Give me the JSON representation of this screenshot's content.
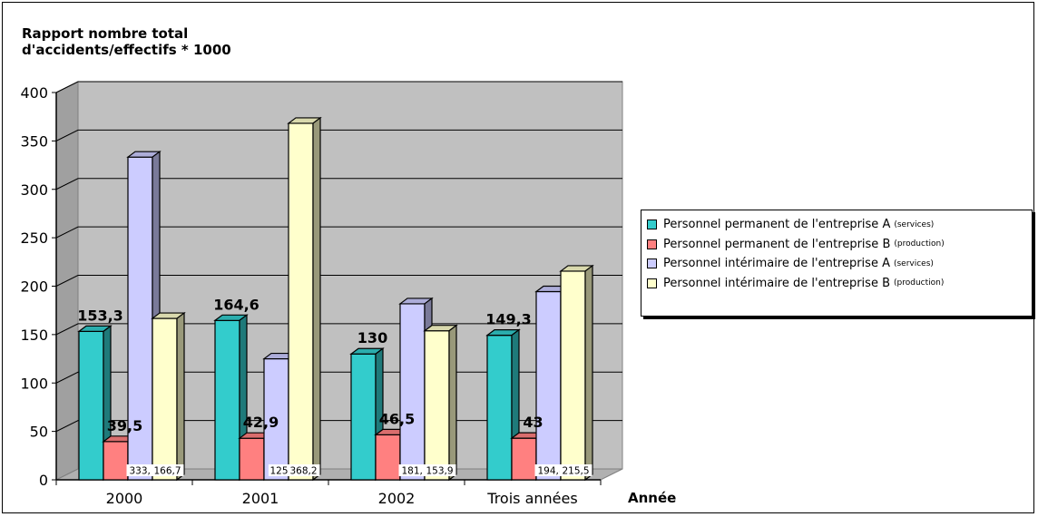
{
  "chart_data": {
    "type": "bar",
    "title": "",
    "ylabel_line1": "Rapport nombre total",
    "ylabel_line2": "d'accidents/effectifs * 1000",
    "xlabel": "Année",
    "categories": [
      "2000",
      "2001",
      "2002",
      "Trois années"
    ],
    "ylim": [
      0,
      400
    ],
    "yticks": [
      0,
      50,
      100,
      150,
      200,
      250,
      300,
      350,
      400
    ],
    "grid": true,
    "legend_position": "right",
    "series": [
      {
        "name": "Personnel permanent de l'entreprise A",
        "name_note": "(services)",
        "color": "#33cccc",
        "values": [
          153.3,
          164.6,
          130,
          149.3
        ],
        "labels": [
          "153,3",
          "164,6",
          "130",
          "149,3"
        ]
      },
      {
        "name": "Personnel permanent de l'entreprise B",
        "name_note": "(production)",
        "color": "#ff8080",
        "values": [
          39.5,
          42.9,
          46.5,
          43
        ],
        "labels": [
          "39,5",
          "42,9",
          "46,5",
          "43"
        ]
      },
      {
        "name": "Personnel intérimaire de l'entreprise A",
        "name_note": "(services)",
        "color": "#ccccff",
        "values": [
          333.3,
          125,
          181.8,
          194.4
        ],
        "labels": [
          "333,3",
          "125",
          "181,8",
          "194,4"
        ]
      },
      {
        "name": "Personnel intérimaire de l'entreprise B",
        "name_note": "(production)",
        "color": "#ffffcc",
        "values": [
          166.7,
          368.2,
          153.9,
          215.5
        ],
        "labels": [
          "166,7",
          "368,2",
          "153,9",
          "215,5"
        ]
      }
    ]
  }
}
